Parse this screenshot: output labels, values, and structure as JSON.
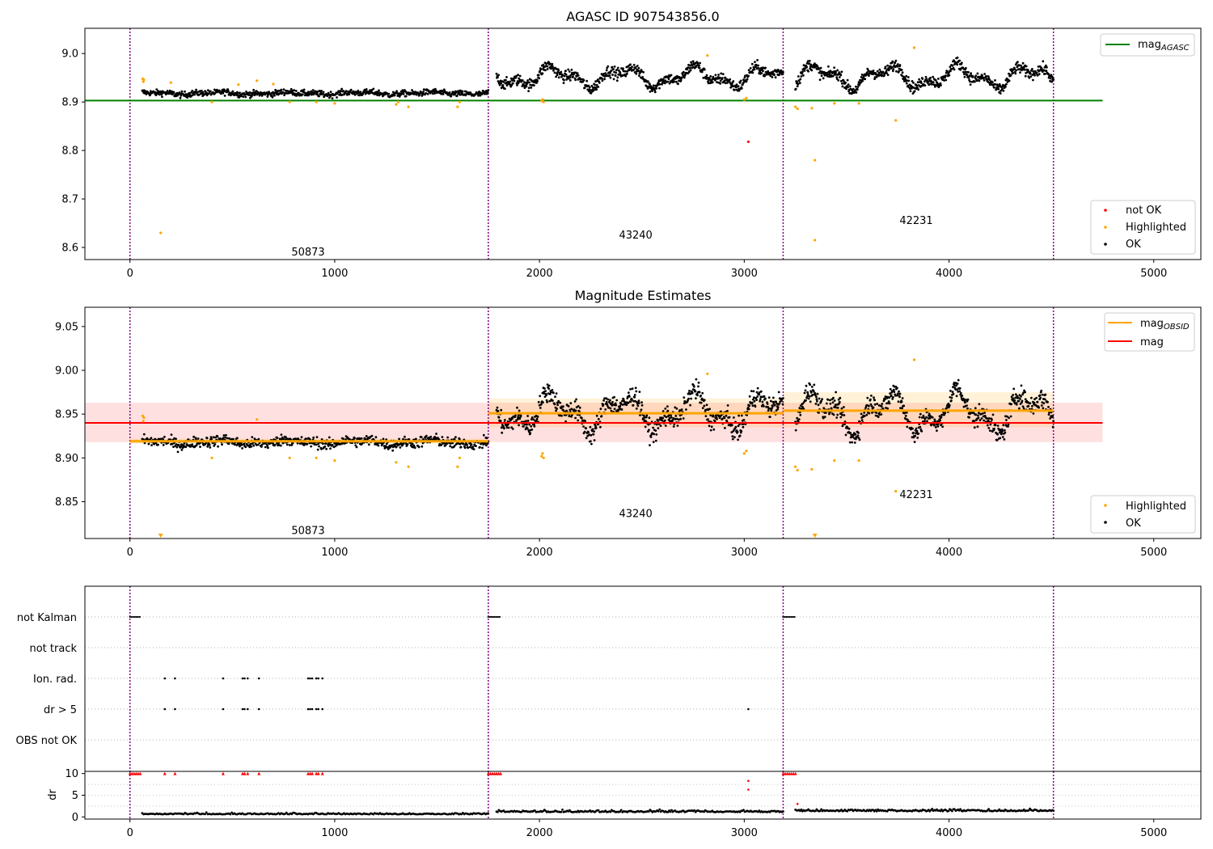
{
  "chart_data": [
    {
      "type": "scatter",
      "title": "AGASC ID 907543856.0",
      "xlim": [
        -220,
        5230
      ],
      "ylim": [
        8.575,
        9.052
      ],
      "xticks": [
        "0",
        "1000",
        "2000",
        "3000",
        "4000",
        "5000"
      ],
      "xtick_values": [
        0,
        1000,
        2000,
        3000,
        4000,
        5000
      ],
      "yticks": [
        "8.6",
        "8.7",
        "8.8",
        "8.9",
        "9.0"
      ],
      "ytick_values": [
        8.6,
        8.7,
        8.8,
        8.9,
        9.0
      ],
      "obs_boundaries": [
        0,
        1750,
        3190,
        4510
      ],
      "obs_labels": [
        {
          "text": "50873",
          "x": 870,
          "y": 8.59
        },
        {
          "text": "43240",
          "x": 2470,
          "y": 8.625
        },
        {
          "text": "42231",
          "x": 3840,
          "y": 8.655
        }
      ],
      "reference_line": {
        "name": "mag_AGASC",
        "label": "mag",
        "sub": "AGASC",
        "value": 8.903,
        "x0": -220,
        "x1": 4750,
        "color": "#008000"
      },
      "segments": [
        {
          "x0": 60,
          "x1": 1750,
          "level": 8.918,
          "spread": 0.006,
          "wave": 0.002,
          "n": 700
        },
        {
          "x0": 1790,
          "x1": 3190,
          "level": 8.952,
          "spread": 0.011,
          "wave": 0.016,
          "n": 680
        },
        {
          "x0": 3250,
          "x1": 4510,
          "level": 8.952,
          "spread": 0.011,
          "wave": 0.018,
          "n": 620
        }
      ],
      "highlighted": [
        [
          62,
          8.948
        ],
        [
          65,
          8.942
        ],
        [
          68,
          8.946
        ],
        [
          150,
          8.63
        ],
        [
          200,
          8.94
        ],
        [
          400,
          8.9
        ],
        [
          530,
          8.936
        ],
        [
          620,
          8.944
        ],
        [
          700,
          8.937
        ],
        [
          780,
          8.9
        ],
        [
          910,
          8.9
        ],
        [
          1000,
          8.897
        ],
        [
          1300,
          8.895
        ],
        [
          1310,
          8.9
        ],
        [
          1360,
          8.89
        ],
        [
          1600,
          8.89
        ],
        [
          1610,
          8.9
        ],
        [
          2010,
          8.902
        ],
        [
          2015,
          8.905
        ],
        [
          2020,
          8.9
        ],
        [
          2820,
          8.996
        ],
        [
          3000,
          8.905
        ],
        [
          3010,
          8.908
        ],
        [
          3250,
          8.89
        ],
        [
          3260,
          8.886
        ],
        [
          3330,
          8.887
        ],
        [
          3345,
          8.78
        ],
        [
          3345,
          8.615
        ],
        [
          3440,
          8.897
        ],
        [
          3560,
          8.897
        ],
        [
          3740,
          8.862
        ],
        [
          3830,
          9.012
        ]
      ],
      "not_ok": [
        [
          3020,
          8.818
        ]
      ],
      "legend_top": [
        {
          "label": "mag",
          "sub": "AGASC",
          "color": "#008000"
        }
      ],
      "legend_bottom": [
        {
          "label": "not OK",
          "color": "#ff0000"
        },
        {
          "label": "Highlighted",
          "color": "#ffa500"
        },
        {
          "label": "OK",
          "color": "#000000"
        }
      ]
    },
    {
      "type": "scatter",
      "title": "Magnitude Estimates",
      "xlim": [
        -220,
        5230
      ],
      "ylim": [
        8.808,
        9.072
      ],
      "xticks": [
        "0",
        "1000",
        "2000",
        "3000",
        "4000",
        "5000"
      ],
      "xtick_values": [
        0,
        1000,
        2000,
        3000,
        4000,
        5000
      ],
      "yticks": [
        "8.85",
        "8.90",
        "8.95",
        "9.00",
        "9.05"
      ],
      "ytick_values": [
        8.85,
        8.9,
        8.95,
        9.0,
        9.05
      ],
      "obs_boundaries": [
        0,
        1750,
        3190,
        4510
      ],
      "obs_labels": [
        {
          "text": "50873",
          "x": 870,
          "y": 8.817
        },
        {
          "text": "43240",
          "x": 2470,
          "y": 8.836
        },
        {
          "text": "42231",
          "x": 3840,
          "y": 8.858
        }
      ],
      "mag_band": {
        "value": 8.94,
        "low": 8.918,
        "high": 8.963,
        "x0": -220,
        "x1": 4750,
        "color": "#ff0000"
      },
      "obsid_mags": [
        {
          "x0": 0,
          "x1": 1750,
          "value": 8.919,
          "low": 8.916,
          "high": 8.922
        },
        {
          "x0": 1750,
          "x1": 3190,
          "value": 8.951,
          "low": 8.935,
          "high": 8.968
        },
        {
          "x0": 3190,
          "x1": 4510,
          "value": 8.954,
          "low": 8.935,
          "high": 8.975
        }
      ],
      "segments": [
        {
          "x0": 60,
          "x1": 1750,
          "level": 8.918,
          "spread": 0.006,
          "wave": 0.002,
          "n": 700
        },
        {
          "x0": 1790,
          "x1": 3190,
          "level": 8.952,
          "spread": 0.011,
          "wave": 0.016,
          "n": 680
        },
        {
          "x0": 3250,
          "x1": 4510,
          "level": 8.952,
          "spread": 0.011,
          "wave": 0.018,
          "n": 620
        }
      ],
      "highlighted": [
        [
          62,
          8.948
        ],
        [
          65,
          8.942
        ],
        [
          68,
          8.946
        ],
        [
          150,
          8.811
        ],
        [
          400,
          8.9
        ],
        [
          620,
          8.944
        ],
        [
          780,
          8.9
        ],
        [
          910,
          8.9
        ],
        [
          1000,
          8.897
        ],
        [
          1300,
          8.895
        ],
        [
          1360,
          8.89
        ],
        [
          1600,
          8.89
        ],
        [
          1610,
          8.9
        ],
        [
          2010,
          8.902
        ],
        [
          2015,
          8.905
        ],
        [
          2020,
          8.9
        ],
        [
          2820,
          8.996
        ],
        [
          3000,
          8.905
        ],
        [
          3010,
          8.908
        ],
        [
          3250,
          8.89
        ],
        [
          3260,
          8.886
        ],
        [
          3330,
          8.887
        ],
        [
          3345,
          8.811
        ],
        [
          3440,
          8.897
        ],
        [
          3560,
          8.897
        ],
        [
          3740,
          8.862
        ],
        [
          3830,
          9.012
        ]
      ],
      "legend_top": [
        {
          "label": "mag",
          "sub": "OBSID",
          "color": "#ffa500"
        },
        {
          "label": "mag",
          "sub": "",
          "color": "#ff0000"
        }
      ],
      "legend_bottom": [
        {
          "label": "Highlighted",
          "color": "#ffa500"
        },
        {
          "label": "OK",
          "color": "#000000"
        }
      ]
    },
    {
      "type": "scatter",
      "title": "",
      "xlim": [
        -220,
        5230
      ],
      "categories": [
        "not Kalman",
        "not track",
        "Ion. rad.",
        "dr > 5",
        "OBS not OK"
      ],
      "obs_boundaries": [
        0,
        1750,
        3190,
        4510
      ],
      "flag_points": {
        "not Kalman": [
          [
            0,
            50
          ],
          [
            1750,
            1810
          ],
          [
            3190,
            3250
          ]
        ],
        "not track": [],
        "Ion. rad.": [
          170,
          220,
          455,
          550,
          560,
          575,
          630,
          870,
          880,
          890,
          910,
          920,
          940
        ],
        "dr > 5": [
          170,
          220,
          455,
          550,
          560,
          575,
          630,
          870,
          880,
          890,
          910,
          920,
          940,
          3020
        ],
        "OBS not OK": []
      }
    },
    {
      "type": "scatter",
      "title": "",
      "ylabel": "dr",
      "xlim": [
        -220,
        5230
      ],
      "ylim": [
        -0.5,
        10.5
      ],
      "xticks": [
        "0",
        "1000",
        "2000",
        "3000",
        "4000",
        "5000"
      ],
      "xtick_values": [
        0,
        1000,
        2000,
        3000,
        4000,
        5000
      ],
      "yticks": [
        "0",
        "5",
        "10"
      ],
      "ytick_values": [
        0,
        5,
        10
      ],
      "obs_boundaries": [
        0,
        1750,
        3190,
        4510
      ],
      "clipped_at": 10,
      "clipped_x": [
        0,
        10,
        20,
        30,
        40,
        50,
        170,
        220,
        455,
        550,
        560,
        575,
        630,
        870,
        880,
        890,
        910,
        920,
        940,
        1750,
        1760,
        1770,
        1780,
        1790,
        1800,
        1810,
        3190,
        3200,
        3210,
        3220,
        3230,
        3240,
        3250
      ],
      "outliers": [
        [
          3020,
          8.3
        ],
        [
          3020,
          6.3
        ],
        [
          3260,
          3.0
        ]
      ],
      "segments": [
        {
          "x0": 60,
          "x1": 1750,
          "level": 0.6,
          "spread": 0.3,
          "n": 260
        },
        {
          "x0": 1790,
          "x1": 3190,
          "level": 1.1,
          "spread": 0.45,
          "n": 240
        },
        {
          "x0": 3250,
          "x1": 4510,
          "level": 1.3,
          "spread": 0.5,
          "n": 220
        }
      ]
    }
  ]
}
